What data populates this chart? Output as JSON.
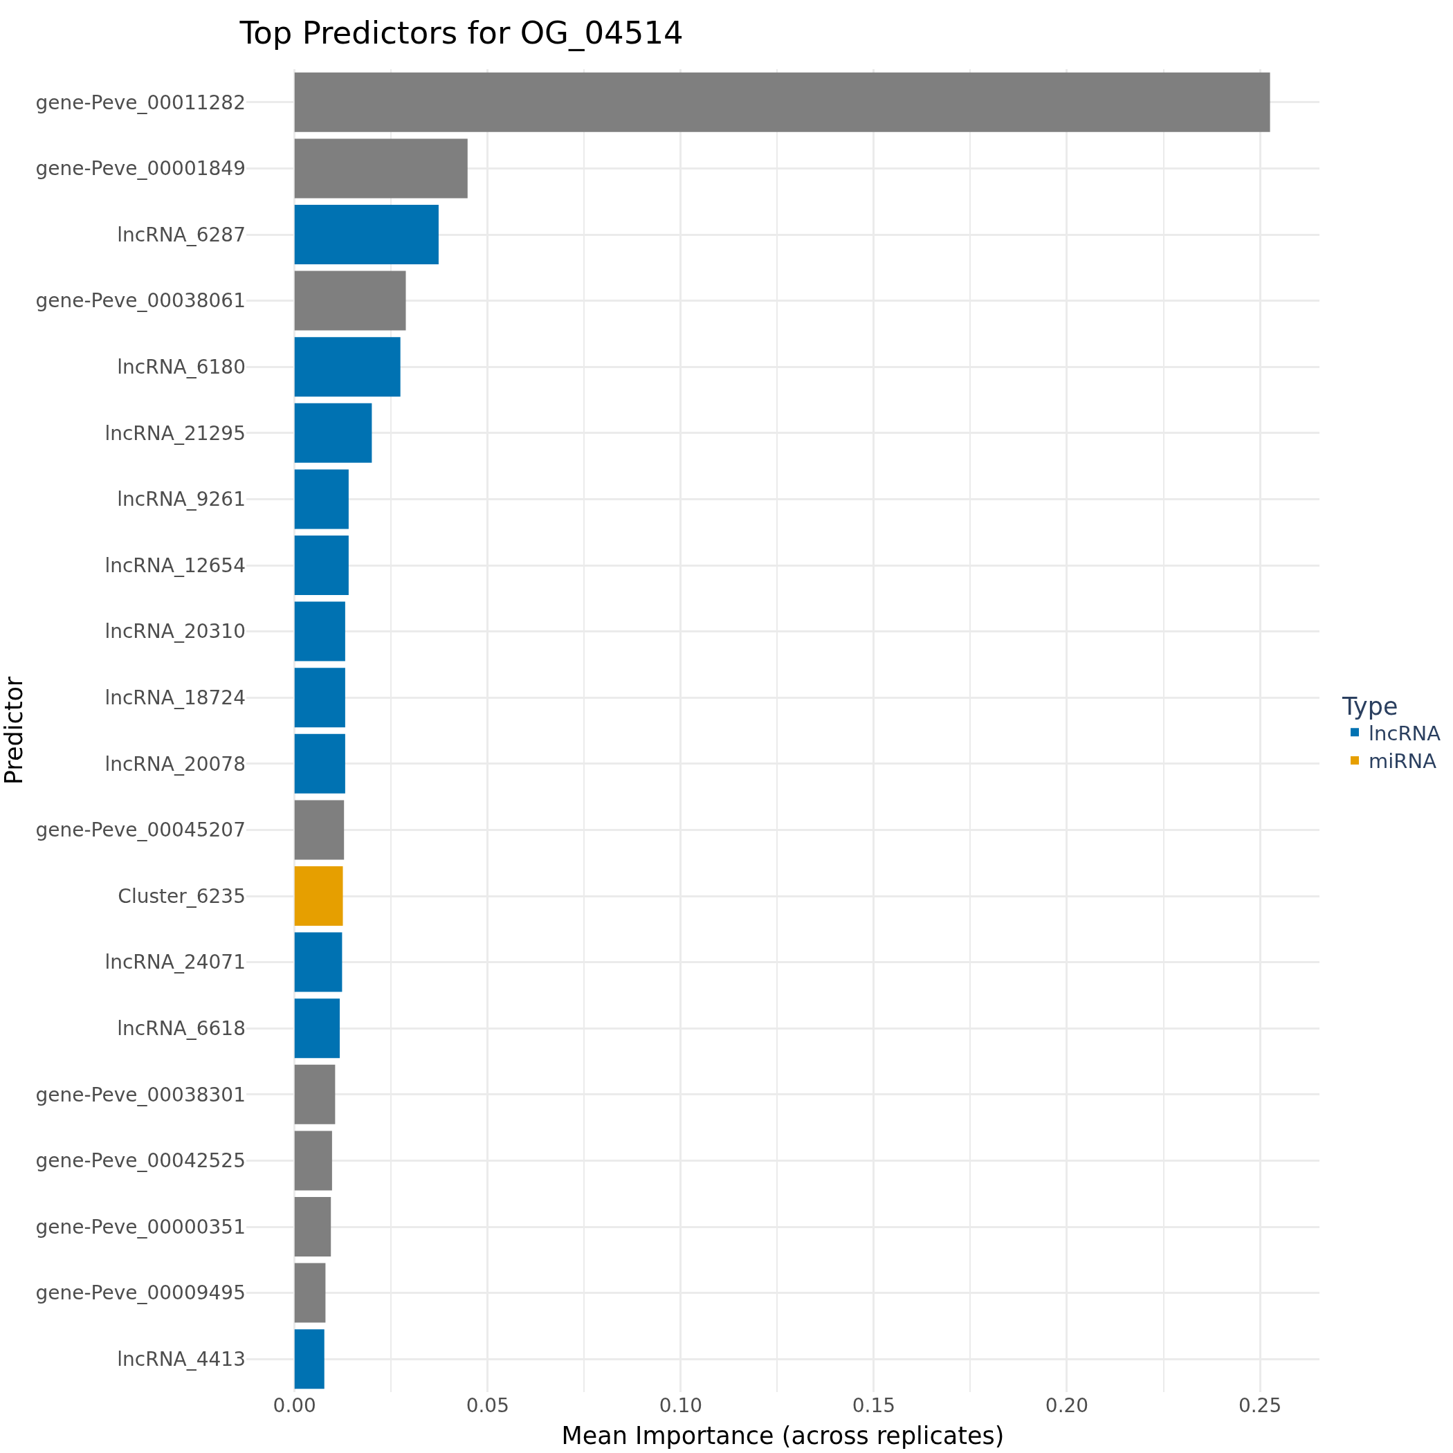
{
  "chart_data": {
    "type": "bar",
    "orientation": "horizontal",
    "title": "Top Predictors for OG_04514",
    "xlabel": "Mean Importance (across replicates)",
    "ylabel": "Predictor",
    "legend_title": "Type",
    "legend": "right",
    "grid": true,
    "categories": [
      "gene-Peve_00011282",
      "gene-Peve_00001849",
      "lncRNA_6287",
      "gene-Peve_00038061",
      "lncRNA_6180",
      "lncRNA_21295",
      "lncRNA_9261",
      "lncRNA_12654",
      "lncRNA_20310",
      "lncRNA_18724",
      "lncRNA_20078",
      "gene-Peve_00045207",
      "Cluster_6235",
      "lncRNA_24071",
      "lncRNA_6618",
      "gene-Peve_00038301",
      "gene-Peve_00042525",
      "gene-Peve_00000351",
      "gene-Peve_00009495",
      "lncRNA_4413"
    ],
    "series": [
      {
        "color": "#7f7f7f",
        "values": [
          0.2526,
          0.0448,
          null,
          0.0288,
          null,
          null,
          null,
          null,
          null,
          null,
          null,
          0.0128,
          null,
          null,
          null,
          0.0105,
          0.0097,
          0.0094,
          0.008,
          null
        ]
      },
      {
        "name": "lncRNA",
        "color": "#0072b2",
        "values": [
          null,
          null,
          0.0373,
          null,
          0.0274,
          0.02,
          0.014,
          0.014,
          0.0131,
          0.0131,
          0.0131,
          null,
          null,
          0.0123,
          0.0117,
          null,
          null,
          null,
          null,
          0.0077
        ]
      },
      {
        "name": "miRNA",
        "color": "#e69f00",
        "values": [
          null,
          null,
          null,
          null,
          null,
          null,
          null,
          null,
          null,
          null,
          null,
          null,
          0.0125,
          null,
          null,
          null,
          null,
          null,
          null,
          null
        ]
      }
    ],
    "xlim": [
      -0.0125,
      0.2654
    ],
    "xticks": [
      {
        "value": 0,
        "label": "0.00"
      },
      {
        "value": 0.05,
        "label": "0.05"
      },
      {
        "value": 0.1,
        "label": "0.10"
      },
      {
        "value": 0.15,
        "label": "0.15"
      },
      {
        "value": 0.2,
        "label": "0.20"
      },
      {
        "value": 0.25,
        "label": "0.25"
      }
    ]
  }
}
